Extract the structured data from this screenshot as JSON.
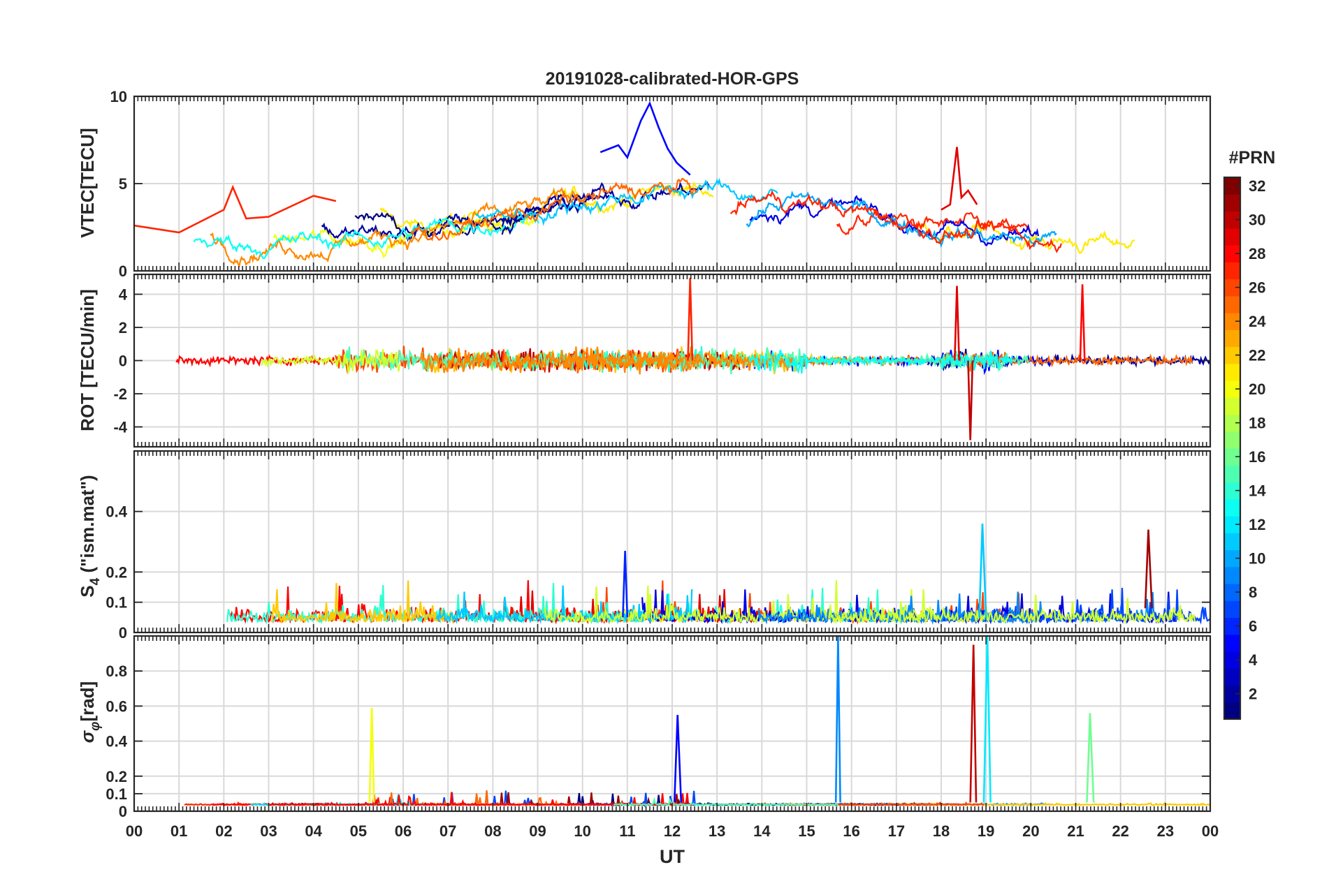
{
  "chart_data": [
    {
      "type": "line",
      "panel": "vtec",
      "title": "20191028-calibrated-HOR-GPS",
      "ylabel": "VTEC[TECU]",
      "ylim": [
        0,
        10
      ],
      "yticks": [
        0,
        5,
        10
      ],
      "xlim": [
        0,
        24
      ],
      "grid": true,
      "note": "Multiple PRN traces colored by #PRN; baseline ~1.5-3 TECU early and late in the day, rising to ~4-6 TECU between 07 and 18 UT, peak ~9.6 TECU near 11.6 UT",
      "series": [
        {
          "name": "PRN 5",
          "x": [
            10.4,
            10.8,
            11.0,
            11.3,
            11.5,
            11.7,
            11.9,
            12.1,
            12.4
          ],
          "y": [
            6.8,
            7.2,
            6.5,
            8.6,
            9.6,
            8.2,
            7.0,
            6.2,
            5.5
          ]
        },
        {
          "name": "PRN 29",
          "x": [
            18.0,
            18.2,
            18.35,
            18.45,
            18.6,
            18.8
          ],
          "y": [
            3.5,
            3.8,
            7.1,
            4.2,
            4.6,
            3.8
          ]
        },
        {
          "name": "PRN 27",
          "x": [
            0,
            1,
            2,
            2.2,
            2.5,
            3,
            4,
            4.5
          ],
          "y": [
            2.6,
            2.2,
            3.5,
            4.8,
            3.0,
            3.1,
            4.3,
            4.0
          ]
        }
      ]
    },
    {
      "type": "line",
      "panel": "rot",
      "ylabel": "ROT [TECU/min]",
      "ylim": [
        -5.2,
        5.2
      ],
      "yticks": [
        -4,
        -2,
        0,
        2,
        4
      ],
      "xlim": [
        0,
        24
      ],
      "grid": true,
      "note": "ROT fluctuating about 0; largest excursions near 12.4 UT (+5.0) and 18.6-19.0 UT (-4.8 to +4.5)",
      "series": [
        {
          "name": "PRN 27 spike",
          "x": [
            12.35,
            12.4,
            12.45
          ],
          "y": [
            0,
            5.0,
            0
          ]
        },
        {
          "name": "PRN 30 spike",
          "x": [
            18.6,
            18.65,
            18.7
          ],
          "y": [
            0,
            -4.8,
            0
          ]
        },
        {
          "name": "PRN 29 spike",
          "x": [
            18.3,
            18.35,
            18.4
          ],
          "y": [
            0,
            4.5,
            0
          ]
        },
        {
          "name": "PRN 28 spike",
          "x": [
            21.1,
            21.15,
            21.2
          ],
          "y": [
            0,
            4.6,
            0
          ]
        }
      ]
    },
    {
      "type": "line",
      "panel": "s4",
      "ylabel": "S4 (\"ism.mat\")",
      "ylim": [
        0,
        0.6
      ],
      "yticks": [
        0,
        0.1,
        0.2,
        0.4
      ],
      "xlim": [
        0,
        24
      ],
      "grid": true,
      "note": "Amplitude scintillation index mostly 0.02-0.15; peaks ~0.36 at 18.9 UT and ~0.35 at 22.6 UT",
      "series": [
        {
          "name": "PRN 11 peak",
          "x": [
            18.85,
            18.92,
            19.0
          ],
          "y": [
            0.05,
            0.36,
            0.05
          ]
        },
        {
          "name": "PRN 31 peak",
          "x": [
            22.55,
            22.62,
            22.7
          ],
          "y": [
            0.08,
            0.34,
            0.08
          ]
        },
        {
          "name": "PRN 6 peak",
          "x": [
            10.9,
            10.95,
            11.0
          ],
          "y": [
            0.05,
            0.27,
            0.05
          ]
        }
      ]
    },
    {
      "type": "line",
      "panel": "sigma_phi",
      "ylabel": "σ_φ [rad]",
      "ylim": [
        0,
        1.0
      ],
      "yticks": [
        0,
        0.1,
        0.2,
        0.4,
        0.6,
        0.8
      ],
      "xlim": [
        0,
        24
      ],
      "grid": true,
      "note": "Phase scintillation mostly ~0.03-0.05 rad; spikes near 5.3 UT (0.59), 12.1 UT (0.55), 15.7 UT (~1.0), 18.7-19.1 UT (~1.0), 21.3 UT (0.56)",
      "series": [
        {
          "name": "PRN 20 spike",
          "x": [
            5.25,
            5.3,
            5.35
          ],
          "y": [
            0.05,
            0.59,
            0.05
          ]
        },
        {
          "name": "PRN 5 spike",
          "x": [
            12.05,
            12.12,
            12.2
          ],
          "y": [
            0.05,
            0.55,
            0.05
          ]
        },
        {
          "name": "PRN 9 spike",
          "x": [
            15.65,
            15.7,
            15.75
          ],
          "y": [
            0.05,
            1.0,
            0.05
          ]
        },
        {
          "name": "PRN 30 spike",
          "x": [
            18.65,
            18.72,
            18.78
          ],
          "y": [
            0.05,
            0.95,
            0.05
          ]
        },
        {
          "name": "PRN 12 spike",
          "x": [
            18.95,
            19.03,
            19.1
          ],
          "y": [
            0.05,
            1.0,
            0.05
          ]
        },
        {
          "name": "PRN 16 spike",
          "x": [
            21.25,
            21.32,
            21.4
          ],
          "y": [
            0.05,
            0.56,
            0.05
          ]
        }
      ]
    }
  ],
  "xaxis": {
    "label": "UT",
    "ticks": [
      "00",
      "01",
      "02",
      "03",
      "04",
      "05",
      "06",
      "07",
      "08",
      "09",
      "10",
      "11",
      "12",
      "13",
      "14",
      "15",
      "16",
      "17",
      "18",
      "19",
      "20",
      "21",
      "22",
      "23",
      "00"
    ]
  },
  "colorbar": {
    "label": "#PRN",
    "colormap": "jet",
    "range": [
      1,
      32
    ],
    "ticks": [
      "2",
      "4",
      "6",
      "8",
      "10",
      "12",
      "14",
      "16",
      "18",
      "20",
      "22",
      "24",
      "26",
      "28",
      "30",
      "32"
    ]
  },
  "labels": {
    "title": "20191028-calibrated-HOR-GPS",
    "vtec_ylabel": "VTEC[TECU]",
    "rot_ylabel": "ROT [TECU/min]",
    "s4_ylabel_main": "S",
    "s4_ylabel_sub": "4",
    "s4_ylabel_rest": " (\"ism.mat\")",
    "sig_ylabel_main": "σ",
    "sig_ylabel_sub": "φ",
    "sig_ylabel_rest": "[rad]",
    "vtec_ticks": [
      "0",
      "5",
      "10"
    ],
    "rot_ticks": [
      "-4",
      "-2",
      "0",
      "2",
      "4"
    ],
    "s4_ticks": [
      "0",
      "0.1",
      "0.2",
      "0.4"
    ],
    "sig_ticks": [
      "0",
      "0.1",
      "0.2",
      "0.4",
      "0.6",
      "0.8"
    ]
  },
  "colors": {
    "axis": "#262626",
    "grid": "#d9d9d9"
  }
}
